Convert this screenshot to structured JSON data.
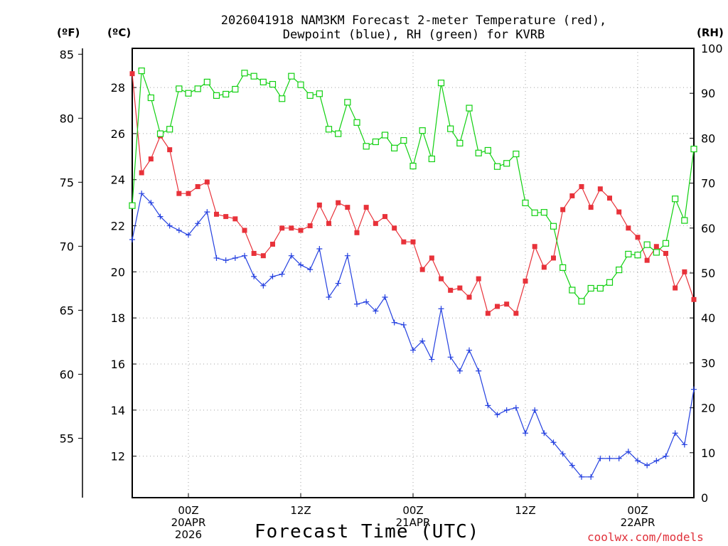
{
  "title": {
    "line1": "2026041918 NAM3KM Forecast 2-meter Temperature (red),",
    "line2": "Dewpoint (blue), RH (green) for KVRB"
  },
  "units": {
    "fahrenheit": "(ºF)",
    "celsius": "(ºC)",
    "rh": "(RH)"
  },
  "xlabel": "Forecast Time (UTC)",
  "credit": "coolwx.com/models",
  "colors": {
    "temperature": "#e8323a",
    "dewpoint": "#2440e0",
    "rh": "#10d010",
    "grid": "#a0a0a0"
  },
  "chart_data": {
    "type": "line",
    "title": "2026041918 NAM3KM Forecast 2-meter Temperature (red), Dewpoint (blue), RH (green) for KVRB",
    "xlabel": "Forecast Time (UTC)",
    "x_unit": "forecast hour",
    "xlim": [
      0,
      60
    ],
    "x_ticks": [
      {
        "x": 6,
        "lines": [
          "00Z",
          "20APR",
          "2026"
        ]
      },
      {
        "x": 18,
        "lines": [
          "12Z"
        ]
      },
      {
        "x": 30,
        "lines": [
          "00Z",
          "21APR"
        ]
      },
      {
        "x": 42,
        "lines": [
          "12Z"
        ]
      },
      {
        "x": 54,
        "lines": [
          "00Z",
          "22APR"
        ]
      }
    ],
    "y_left_outer": {
      "label": "(ºF)",
      "ticks": [
        55,
        60,
        65,
        70,
        75,
        80,
        85
      ]
    },
    "y_left_inner": {
      "label": "(ºC)",
      "ticks": [
        12,
        14,
        16,
        18,
        20,
        22,
        24,
        26,
        28
      ],
      "ylim": [
        10.2,
        29.7
      ]
    },
    "y_right": {
      "label": "(RH)",
      "ticks": [
        0,
        10,
        20,
        30,
        40,
        50,
        60,
        70,
        80,
        90,
        100
      ],
      "ylim": [
        0,
        100
      ]
    },
    "grid": true,
    "series": [
      {
        "name": "2-meter Temperature",
        "unit": "°C",
        "color": "#e8323a",
        "marker": "filled-square",
        "x": [
          0,
          1,
          2,
          3,
          4,
          5,
          6,
          7,
          8,
          9,
          10,
          11,
          12,
          13,
          14,
          15,
          16,
          17,
          18,
          19,
          20,
          21,
          22,
          23,
          24,
          25,
          26,
          27,
          28,
          29,
          30,
          31,
          32,
          33,
          34,
          35,
          36,
          37,
          38,
          39,
          40,
          41,
          42,
          43,
          44,
          45,
          46,
          47,
          48,
          49,
          50,
          51,
          52,
          53,
          54,
          55,
          56,
          57,
          58,
          59,
          60
        ],
        "values": [
          28.6,
          24.3,
          24.9,
          25.9,
          25.3,
          23.4,
          23.4,
          23.7,
          23.9,
          22.5,
          22.4,
          22.3,
          21.8,
          20.8,
          20.7,
          21.2,
          21.9,
          21.9,
          21.8,
          22.0,
          22.9,
          22.1,
          23.0,
          22.8,
          21.7,
          22.8,
          22.1,
          22.4,
          21.9,
          21.3,
          21.3,
          20.1,
          20.6,
          19.7,
          19.2,
          19.3,
          18.9,
          19.7,
          18.2,
          18.5,
          18.6,
          18.2,
          19.6,
          21.1,
          20.2,
          20.6,
          22.7,
          23.3,
          23.7,
          22.8,
          23.6,
          23.2,
          22.6,
          21.9,
          21.5,
          20.5,
          21.1,
          20.8,
          19.3,
          20.0,
          18.8
        ]
      },
      {
        "name": "Dewpoint",
        "unit": "°C",
        "color": "#2440e0",
        "marker": "plus",
        "x": [
          0,
          1,
          2,
          3,
          4,
          5,
          6,
          7,
          8,
          9,
          10,
          11,
          12,
          13,
          14,
          15,
          16,
          17,
          18,
          19,
          20,
          21,
          22,
          23,
          24,
          25,
          26,
          27,
          28,
          29,
          30,
          31,
          32,
          33,
          34,
          35,
          36,
          37,
          38,
          39,
          40,
          41,
          42,
          43,
          44,
          45,
          46,
          47,
          48,
          49,
          50,
          51,
          52,
          53,
          54,
          55,
          56,
          57,
          58,
          59,
          60
        ],
        "values": [
          21.4,
          23.4,
          23.0,
          22.4,
          22.0,
          21.8,
          21.6,
          22.1,
          22.6,
          20.6,
          20.5,
          20.6,
          20.7,
          19.8,
          19.4,
          19.8,
          19.9,
          20.7,
          20.3,
          20.1,
          21.0,
          18.9,
          19.5,
          20.7,
          18.6,
          18.7,
          18.3,
          18.9,
          17.8,
          17.7,
          16.6,
          17.0,
          16.2,
          18.4,
          16.3,
          15.7,
          16.6,
          15.7,
          14.2,
          13.8,
          14.0,
          14.1,
          13.0,
          14.0,
          13.0,
          12.6,
          12.1,
          11.6,
          11.1,
          11.1,
          11.9,
          11.9,
          11.9,
          12.2,
          11.8,
          11.6,
          11.8,
          12.0,
          13.0,
          12.5,
          14.9
        ]
      },
      {
        "name": "RH",
        "unit": "%",
        "color": "#10d010",
        "marker": "open-square",
        "x": [
          0,
          1,
          2,
          3,
          4,
          5,
          6,
          7,
          8,
          9,
          10,
          11,
          12,
          13,
          14,
          15,
          16,
          17,
          18,
          19,
          20,
          21,
          22,
          23,
          24,
          25,
          26,
          27,
          28,
          29,
          30,
          31,
          32,
          33,
          34,
          35,
          36,
          37,
          38,
          39,
          40,
          41,
          42,
          43,
          44,
          45,
          46,
          47,
          48,
          49,
          50,
          51,
          52,
          53,
          54,
          55,
          56,
          57,
          58,
          59,
          60
        ],
        "values": [
          65,
          95,
          89,
          81,
          82,
          91,
          90,
          91,
          92.5,
          89.5,
          89.8,
          90.9,
          94.5,
          93.8,
          92.5,
          92,
          88.8,
          93.8,
          91.9,
          89.5,
          89.9,
          82,
          81,
          88,
          83.5,
          78.2,
          79.2,
          80.7,
          77.8,
          79.5,
          73.8,
          81.7,
          75.4,
          92.3,
          82.1,
          78.9,
          86.7,
          76.7,
          77.3,
          73.7,
          74.4,
          76.5,
          65.6,
          63.4,
          63.5,
          60.4,
          51.2,
          46.2,
          43.7,
          46.6,
          46.6,
          47.9,
          50.7,
          54.2,
          54,
          56.3,
          54.6,
          56.6,
          66.5,
          61.7,
          77.6
        ]
      }
    ]
  }
}
